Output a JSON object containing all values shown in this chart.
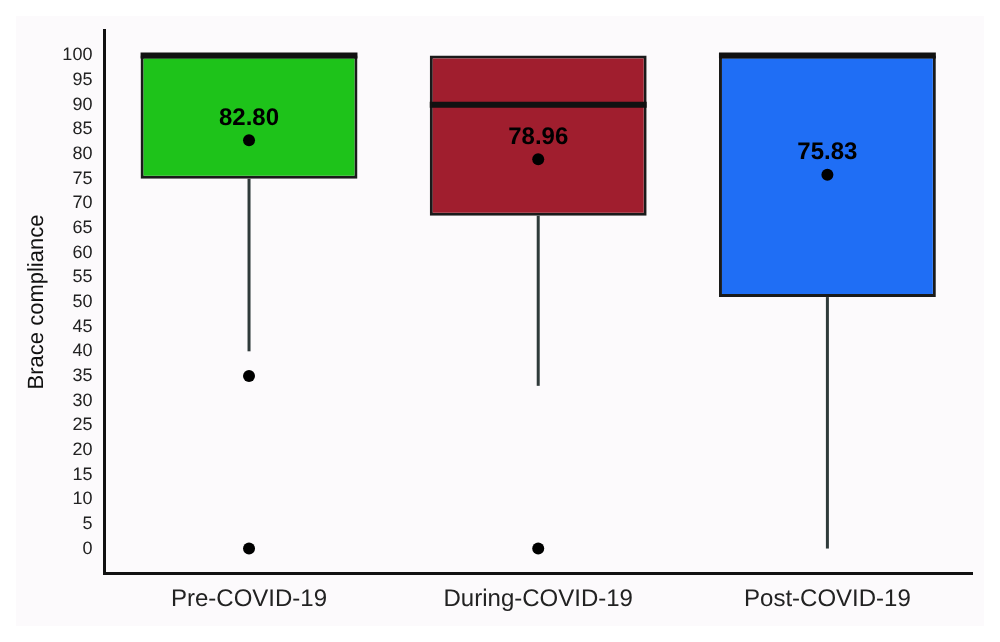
{
  "chart_data": {
    "type": "box",
    "ylabel": "Brace compliance",
    "categories": [
      "Pre-COVID-19",
      "During-COVID-19",
      "Post-COVID-19"
    ],
    "colors": [
      "#1ec31a",
      "#a01e2e",
      "#1f6ef5"
    ],
    "boxes": [
      {
        "low": 40,
        "q1": 75,
        "median": 100,
        "q3": 100,
        "high": 100,
        "mean": 82.8,
        "outliers": [
          35,
          0
        ]
      },
      {
        "low": 33,
        "q1": 67.5,
        "median": 90,
        "q3": 100,
        "high": 100,
        "mean": 78.96,
        "outliers": [
          0
        ]
      },
      {
        "low": 0,
        "q1": 51,
        "median": 100,
        "q3": 100,
        "high": 100,
        "mean": 75.83
      }
    ],
    "annotations": [
      "82.80",
      "78.96",
      "75.83"
    ],
    "ylim": [
      -5,
      105
    ],
    "yticks": [
      0,
      5,
      10,
      15,
      20,
      25,
      30,
      35,
      40,
      45,
      50,
      55,
      60,
      65,
      70,
      75,
      80,
      85,
      90,
      95,
      100
    ],
    "grid": false,
    "legend": false
  }
}
